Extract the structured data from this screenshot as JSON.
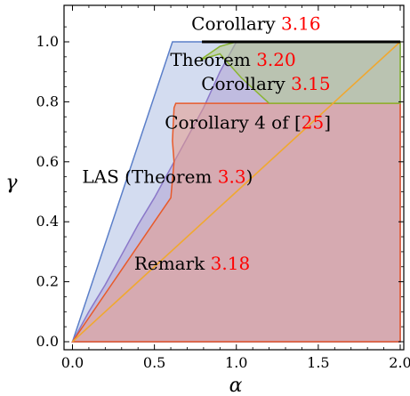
{
  "chart_data": {
    "type": "area",
    "xlabel": "α",
    "ylabel": "γ",
    "xlim": [
      0.0,
      2.0
    ],
    "ylim": [
      0.0,
      1.1
    ],
    "x_ticks": [
      "0.0",
      "0.5",
      "1.0",
      "1.5",
      "2.0"
    ],
    "y_ticks": [
      "0.0",
      "0.2",
      "0.4",
      "0.6",
      "0.8",
      "1.0"
    ],
    "regions": [
      {
        "key": "blue",
        "fill": "#aebfe3",
        "stroke": "#5b7fc9",
        "points": [
          [
            0.0,
            0.0
          ],
          [
            0.61,
            1.0
          ],
          [
            2.0,
            1.0
          ],
          [
            2.0,
            0.0
          ]
        ]
      },
      {
        "key": "purple",
        "fill": "#b0a3d4",
        "stroke": "#8a78c9",
        "points": [
          [
            0.0,
            0.0
          ],
          [
            0.1,
            0.1
          ],
          [
            0.2,
            0.19
          ],
          [
            0.3,
            0.29
          ],
          [
            0.4,
            0.39
          ],
          [
            0.5,
            0.48
          ],
          [
            0.6,
            0.58
          ],
          [
            0.7,
            0.68
          ],
          [
            0.8,
            0.78
          ],
          [
            0.9,
            0.9
          ],
          [
            1.0,
            1.0
          ],
          [
            2.0,
            1.0
          ],
          [
            2.0,
            0.0
          ]
        ]
      },
      {
        "key": "red",
        "fill": "#e89a8a",
        "stroke": "#e85a2a",
        "points": [
          [
            0.0,
            0.0
          ],
          [
            0.3,
            0.24
          ],
          [
            0.5,
            0.4
          ],
          [
            0.6,
            0.48
          ],
          [
            0.62,
            0.6
          ],
          [
            0.61,
            0.67
          ],
          [
            0.62,
            0.78
          ],
          [
            0.63,
            0.795
          ],
          [
            2.0,
            0.795
          ],
          [
            2.0,
            0.0
          ]
        ]
      },
      {
        "key": "green",
        "fill": "#b5c98a",
        "stroke": "#8ab531",
        "points": [
          [
            0.78,
            0.94
          ],
          [
            0.9,
            0.985
          ],
          [
            1.0,
            1.0
          ],
          [
            2.0,
            1.0
          ],
          [
            2.0,
            0.795
          ],
          [
            1.2,
            0.795
          ],
          [
            1.03,
            0.88
          ],
          [
            0.9,
            0.96
          ]
        ]
      }
    ],
    "orange_line": {
      "stroke": "#f0a830",
      "points": [
        [
          0.0,
          0.0
        ],
        [
          2.0,
          1.0
        ]
      ]
    },
    "black_segment": {
      "stroke": "#000000",
      "points": [
        [
          0.79,
          1.0
        ],
        [
          2.0,
          1.0
        ]
      ]
    },
    "annotations": [
      {
        "key": "corollary_316",
        "text": "Corollary ",
        "ref": "3.16",
        "x": 1.12,
        "y": 1.04
      },
      {
        "key": "theorem_320",
        "text": "Theorem ",
        "ref": "3.20",
        "x": 0.98,
        "y": 0.92
      },
      {
        "key": "corollary_315",
        "text": "Corollary ",
        "ref": "3.15",
        "x": 1.18,
        "y": 0.84
      },
      {
        "key": "corollary_4",
        "text": "Corollary 4 of [",
        "ref": "25",
        "suffix": "]",
        "x": 1.07,
        "y": 0.71
      },
      {
        "key": "las",
        "text": "LAS (Theorem ",
        "ref": "3.3",
        "suffix": ")",
        "x": 0.58,
        "y": 0.53
      },
      {
        "key": "remark",
        "text": "Remark ",
        "ref": "3.18",
        "x": 0.73,
        "y": 0.24
      }
    ],
    "ref_color": "#ff0000"
  }
}
